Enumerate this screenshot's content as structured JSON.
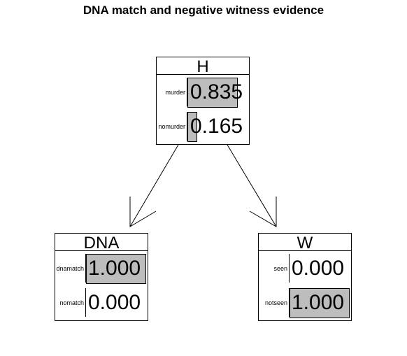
{
  "title": "DNA match and negative witness evidence",
  "nodes": [
    {
      "name": "H",
      "states": [
        {
          "label": "murder",
          "prob": 0.835,
          "text": "0.835"
        },
        {
          "label": "nomurder",
          "prob": 0.165,
          "text": "0.165"
        }
      ]
    },
    {
      "name": "DNA",
      "states": [
        {
          "label": "dnamatch",
          "prob": 1.0,
          "text": "1.000"
        },
        {
          "label": "nomatch",
          "prob": 0.0,
          "text": "0.000"
        }
      ]
    },
    {
      "name": "W",
      "states": [
        {
          "label": "seen",
          "prob": 0.0,
          "text": "0.000"
        },
        {
          "label": "notseen",
          "prob": 1.0,
          "text": "1.000"
        }
      ]
    }
  ],
  "edges": [
    {
      "from": "H",
      "to": "DNA"
    },
    {
      "from": "H",
      "to": "W"
    }
  ],
  "colors": {
    "bar_fill": "#bdbdbd",
    "border": "#000000"
  }
}
